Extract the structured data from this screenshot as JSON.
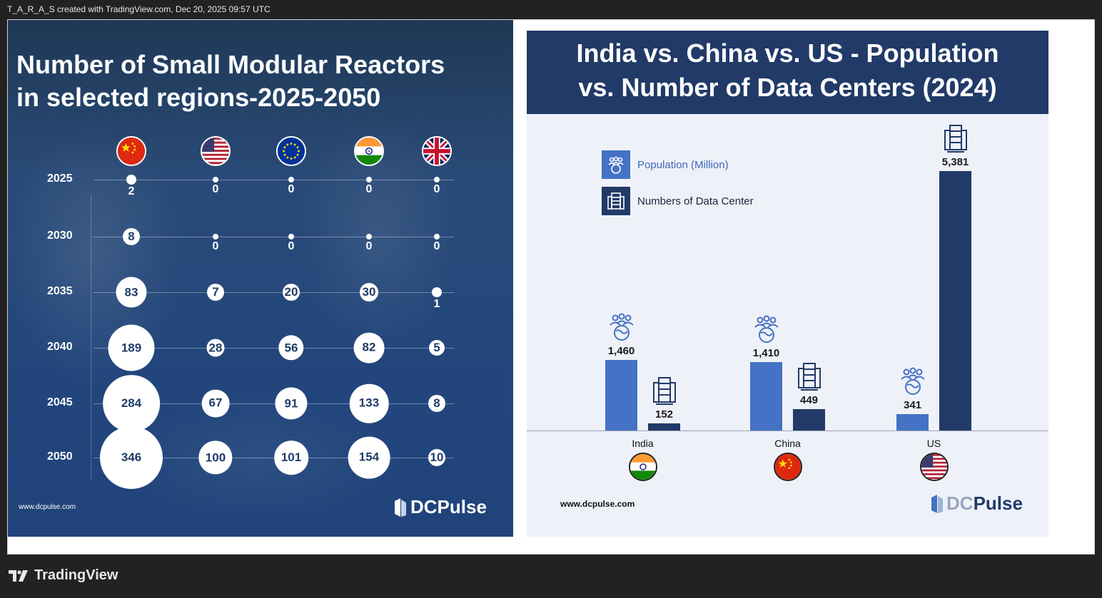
{
  "topbar": {
    "text": "T_A_R_A_S created with TradingView.com, Dec 20, 2025 09:57 UTC"
  },
  "footer": {
    "brand": "TradingView"
  },
  "left_panel": {
    "title_line1": "Number of Small Modular Reactors",
    "title_line2": "in selected regions-2025-2050",
    "site": "www.dcpulse.com",
    "logo_text": "DCPulse"
  },
  "right_panel": {
    "title_line1": "India vs. China vs. US - Population",
    "title_line2": "vs. Number of Data Centers (2024)",
    "legend_population": "Population (Million)",
    "legend_datacenters": "Numbers of Data Center",
    "site": "www.dcpulse.com",
    "logo_text_dc": "DC",
    "logo_text_pulse": "Pulse"
  },
  "colors": {
    "population_bar": "#4472c4",
    "datacenter_bar": "#213a68",
    "header_bg": "#213a68",
    "bubble": "#ffffff",
    "bubble_text": "#1f3d68"
  },
  "chart_data": [
    {
      "type": "scatter",
      "title": "Number of Small Modular Reactors in selected regions-2025-2050",
      "columns": [
        "China",
        "US",
        "EU",
        "India",
        "UK"
      ],
      "column_icons": [
        "china-flag-icon",
        "us-flag-icon",
        "eu-flag-icon",
        "india-flag-icon",
        "uk-flag-icon"
      ],
      "rows": [
        "2025",
        "2030",
        "2035",
        "2040",
        "2045",
        "2050"
      ],
      "values": [
        [
          2,
          0,
          0,
          0,
          0
        ],
        [
          8,
          0,
          0,
          0,
          0
        ],
        [
          83,
          7,
          20,
          30,
          1
        ],
        [
          189,
          28,
          56,
          82,
          5
        ],
        [
          284,
          67,
          91,
          133,
          8
        ],
        [
          346,
          100,
          101,
          154,
          10
        ]
      ]
    },
    {
      "type": "bar",
      "title": "India vs. China vs. US - Population vs. Number of Data Centers (2024)",
      "categories": [
        "India",
        "China",
        "US"
      ],
      "series": [
        {
          "name": "Population (Million)",
          "values": [
            1460,
            1410,
            341
          ],
          "labels": [
            "1,460",
            "1,410",
            "341"
          ]
        },
        {
          "name": "Numbers of Data Center",
          "values": [
            152,
            449,
            5381
          ],
          "labels": [
            "152",
            "449",
            "5,381"
          ]
        }
      ]
    }
  ]
}
